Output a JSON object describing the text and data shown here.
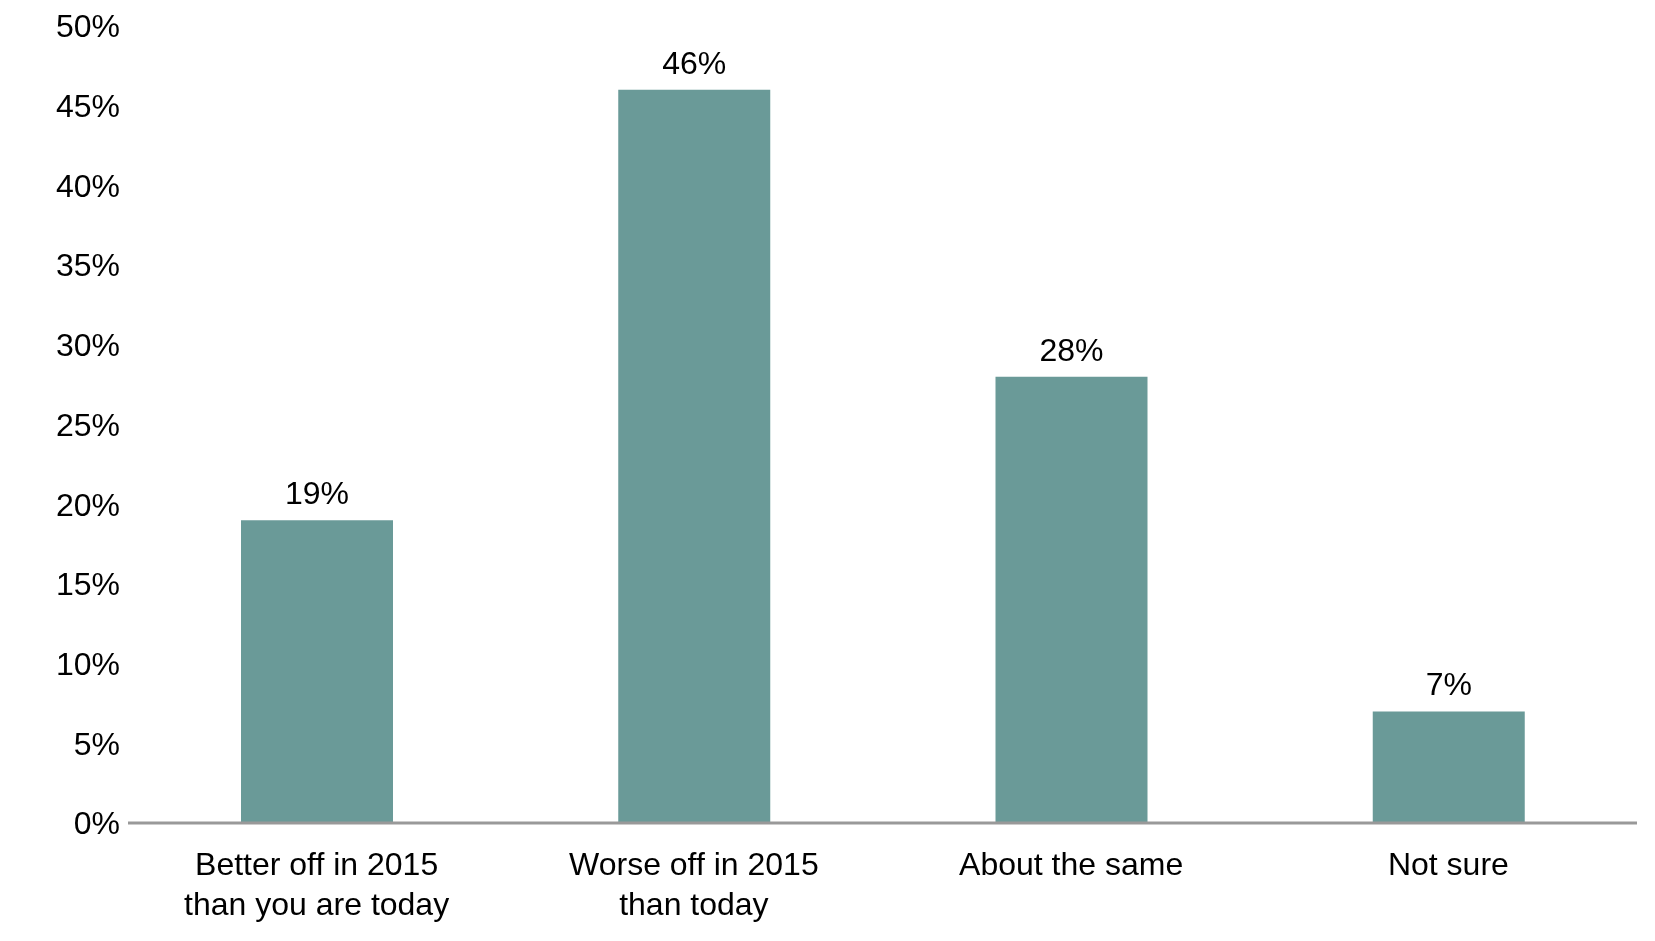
{
  "chart_data": {
    "type": "bar",
    "categories": [
      "Better off in 2015 than you are today",
      "Worse off in 2015 than today",
      "About the same",
      "Not sure"
    ],
    "values": [
      19,
      46,
      28,
      7
    ],
    "value_labels": [
      "19%",
      "46%",
      "28%",
      "7%"
    ],
    "color": "#6a9a98",
    "ylim": [
      0,
      50
    ],
    "yticks": [
      {
        "value": 0,
        "label": "0%"
      },
      {
        "value": 5,
        "label": "5%"
      },
      {
        "value": 10,
        "label": "10%"
      },
      {
        "value": 15,
        "label": "15%"
      },
      {
        "value": 20,
        "label": "20%"
      },
      {
        "value": 25,
        "label": "25%"
      },
      {
        "value": 30,
        "label": "30%"
      },
      {
        "value": 35,
        "label": "35%"
      },
      {
        "value": 40,
        "label": "40%"
      },
      {
        "value": 45,
        "label": "45%"
      },
      {
        "value": 50,
        "label": "50%"
      }
    ],
    "grid": false,
    "legend": false
  }
}
